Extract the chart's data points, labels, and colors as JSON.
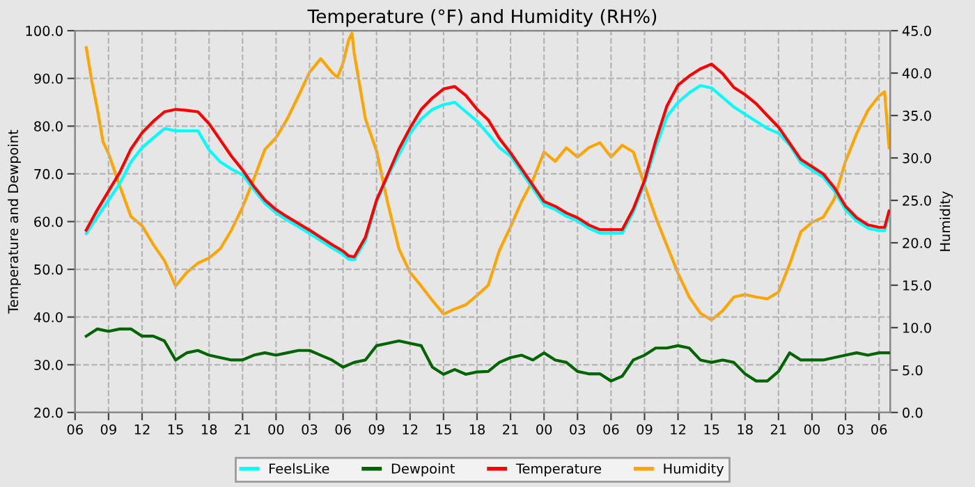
{
  "chart_data": {
    "type": "line",
    "title": "Temperature (°F) and Humidity (RH%)",
    "ylabel": "Temperature and Dewpoint",
    "y2label": "Humidity",
    "xlim": [
      6,
      79
    ],
    "xticks": [
      {
        "value": 6,
        "label": "06"
      },
      {
        "value": 9,
        "label": "09"
      },
      {
        "value": 12,
        "label": "12"
      },
      {
        "value": 15,
        "label": "15"
      },
      {
        "value": 18,
        "label": "18"
      },
      {
        "value": 21,
        "label": "21"
      },
      {
        "value": 24,
        "label": "00"
      },
      {
        "value": 27,
        "label": "03"
      },
      {
        "value": 30,
        "label": "06"
      },
      {
        "value": 33,
        "label": "09"
      },
      {
        "value": 36,
        "label": "12"
      },
      {
        "value": 39,
        "label": "15"
      },
      {
        "value": 42,
        "label": "18"
      },
      {
        "value": 45,
        "label": "21"
      },
      {
        "value": 48,
        "label": "00"
      },
      {
        "value": 51,
        "label": "03"
      },
      {
        "value": 54,
        "label": "06"
      },
      {
        "value": 57,
        "label": "09"
      },
      {
        "value": 60,
        "label": "12"
      },
      {
        "value": 63,
        "label": "15"
      },
      {
        "value": 66,
        "label": "18"
      },
      {
        "value": 69,
        "label": "21"
      },
      {
        "value": 72,
        "label": "00"
      },
      {
        "value": 75,
        "label": "03"
      },
      {
        "value": 78,
        "label": "06"
      }
    ],
    "ylim": [
      20,
      100
    ],
    "yticks": [
      {
        "value": 20,
        "label": "20.0"
      },
      {
        "value": 30,
        "label": "30.0"
      },
      {
        "value": 40,
        "label": "40.0"
      },
      {
        "value": 50,
        "label": "50.0"
      },
      {
        "value": 60,
        "label": "60.0"
      },
      {
        "value": 70,
        "label": "70.0"
      },
      {
        "value": 80,
        "label": "80.0"
      },
      {
        "value": 90,
        "label": "90.0"
      },
      {
        "value": 100,
        "label": "100.0"
      }
    ],
    "y2lim": [
      0,
      45
    ],
    "y2ticks": [
      {
        "value": 0,
        "label": "0.0"
      },
      {
        "value": 5,
        "label": "5.0"
      },
      {
        "value": 10,
        "label": "10.0"
      },
      {
        "value": 15,
        "label": "15.0"
      },
      {
        "value": 20,
        "label": "20.0"
      },
      {
        "value": 25,
        "label": "25.0"
      },
      {
        "value": 30,
        "label": "30.0"
      },
      {
        "value": 35,
        "label": "35.0"
      },
      {
        "value": 40,
        "label": "40.0"
      },
      {
        "value": 45,
        "label": "45.0"
      }
    ],
    "grid": true,
    "legend": "bottom",
    "line_style": "solid",
    "marker": "none",
    "series": [
      {
        "name": "FeelsLike",
        "color": "#00ffff",
        "x": [
          7,
          8,
          9,
          10,
          11,
          12,
          13,
          14,
          15,
          16,
          17,
          18,
          19,
          20,
          21,
          22,
          23,
          24,
          25,
          26,
          27,
          28,
          29,
          30,
          30.5,
          31,
          32,
          33,
          34,
          35,
          36,
          37,
          38,
          39,
          40,
          41,
          42,
          43,
          44,
          45,
          46,
          47,
          48,
          49,
          50,
          51,
          52,
          53,
          54,
          55,
          56,
          57,
          58,
          59,
          60,
          61,
          62,
          63,
          64,
          65,
          66,
          67,
          68,
          69,
          70,
          71,
          72,
          73,
          74,
          75,
          76,
          77,
          78,
          78.5,
          78.9
        ],
        "values": [
          57.5,
          61,
          64.5,
          68,
          72.5,
          75.5,
          77.5,
          79.5,
          79,
          79,
          79,
          75,
          72.5,
          71,
          69.8,
          66.7,
          63.8,
          61.8,
          60.3,
          58.9,
          57.5,
          56,
          54.5,
          53.1,
          52.1,
          52,
          56,
          64,
          69.5,
          74,
          78.5,
          81.5,
          83.5,
          84.5,
          85,
          83,
          81,
          78.3,
          75.5,
          73.7,
          70.3,
          66.9,
          63.5,
          62.5,
          61.1,
          60.1,
          58.6,
          57.6,
          57.6,
          57.6,
          62,
          68,
          75.5,
          82,
          85,
          87,
          88.5,
          88,
          86,
          84,
          82.5,
          81,
          79.5,
          78.5,
          76,
          72.3,
          70.8,
          69.3,
          66.4,
          62.5,
          60.1,
          58.6,
          58.1,
          58.1,
          61.5
        ]
      },
      {
        "name": "Dewpoint",
        "color": "#006400",
        "x": [
          7,
          8,
          9,
          10,
          11,
          12,
          13,
          14,
          15,
          16,
          17,
          18,
          19,
          20,
          21,
          22,
          23,
          24,
          25,
          26,
          27,
          28,
          29,
          30,
          31,
          32,
          33,
          34,
          35,
          36,
          37,
          38,
          39,
          40,
          41,
          42,
          43,
          44,
          45,
          46,
          47,
          48,
          49,
          50,
          51,
          52,
          53,
          54,
          55,
          56,
          57,
          58,
          59,
          60,
          61,
          62,
          63,
          64,
          65,
          66,
          67,
          68,
          69,
          70,
          71,
          72,
          73,
          74,
          75,
          76,
          77,
          78,
          78.9
        ],
        "values": [
          36,
          37.5,
          37,
          37.5,
          37.5,
          36,
          36,
          35,
          31,
          32.5,
          33,
          32,
          31.5,
          31,
          31,
          32,
          32.5,
          32,
          32.5,
          33,
          33,
          32,
          31,
          29.5,
          30.5,
          31,
          34,
          34.5,
          35,
          34.5,
          34,
          29.5,
          28,
          29,
          28,
          28.5,
          28.6,
          30.5,
          31.5,
          32,
          31,
          32.5,
          31,
          30.5,
          28.6,
          28.1,
          28.1,
          26.6,
          27.6,
          31,
          32,
          33.5,
          33.5,
          34,
          33.5,
          31,
          30.5,
          31,
          30.5,
          28.1,
          26.6,
          26.6,
          28.6,
          32.5,
          31,
          31,
          31,
          31.5,
          32,
          32.5,
          32,
          32.5,
          32.5
        ]
      },
      {
        "name": "Temperature",
        "color": "#ff0000",
        "x": [
          7,
          8,
          9,
          10,
          11,
          12,
          13,
          14,
          15,
          16,
          17,
          18,
          19,
          20,
          21,
          22,
          23,
          24,
          25,
          26,
          27,
          28,
          29,
          30,
          30.5,
          31,
          32,
          33,
          34,
          35,
          36,
          37,
          38,
          39,
          40,
          41,
          42,
          43,
          44,
          45,
          46,
          47,
          48,
          49,
          50,
          51,
          52,
          53,
          54,
          55,
          56,
          57,
          58,
          59,
          60,
          61,
          62,
          63,
          64,
          65,
          66,
          67,
          68,
          69,
          70,
          71,
          72,
          73,
          74,
          75,
          76,
          77,
          78,
          78.5,
          78.9
        ],
        "values": [
          58.2,
          62.5,
          66.4,
          70.3,
          75.2,
          78.6,
          81,
          83,
          83.5,
          83.3,
          83,
          80.5,
          77.1,
          73.7,
          70.8,
          67.4,
          64.5,
          62.5,
          61,
          59.6,
          58.2,
          56.7,
          55.2,
          53.8,
          52.8,
          52.6,
          56.7,
          64.5,
          69.8,
          75.2,
          79.6,
          83.5,
          85.9,
          87.8,
          88.3,
          86.4,
          83.5,
          81.3,
          77.4,
          74.4,
          71,
          67.6,
          64.2,
          63.2,
          61.8,
          60.8,
          59.3,
          58.3,
          58.3,
          58.3,
          62.7,
          68.6,
          76.9,
          84.2,
          88.6,
          90.5,
          92,
          93,
          91,
          88.1,
          86.6,
          84.7,
          82.2,
          79.8,
          76.4,
          73,
          71.5,
          70,
          67.1,
          63.2,
          60.8,
          59.3,
          58.8,
          58.8,
          62.2
        ]
      },
      {
        "name": "Humidity",
        "color": "#ffa500",
        "axis": "y2",
        "x": [
          7,
          7.5,
          8,
          8.5,
          9,
          10,
          11,
          12,
          13,
          14,
          15,
          16,
          17,
          18,
          19,
          20,
          21,
          22,
          23,
          24,
          25,
          26,
          27,
          28,
          29,
          29.5,
          30,
          30.5,
          30.8,
          31,
          32,
          33,
          34,
          35,
          36,
          37,
          38,
          39,
          40,
          41,
          42,
          43,
          44,
          45,
          46,
          47,
          48,
          49,
          50,
          51,
          52,
          53,
          54,
          55,
          56,
          57,
          58,
          59,
          60,
          61,
          62,
          63,
          64,
          65,
          66,
          67,
          68,
          69,
          70,
          71,
          72,
          73,
          74,
          75,
          76,
          77,
          78,
          78.5,
          78.9
        ],
        "values": [
          43,
          39,
          35.7,
          31.9,
          30.5,
          26.7,
          23.1,
          22,
          19.8,
          17.9,
          14.9,
          16.5,
          17.6,
          18.2,
          19.3,
          21.5,
          24.2,
          27.5,
          31,
          32.4,
          34.6,
          37.3,
          40.1,
          41.7,
          40.1,
          39.5,
          41.2,
          43.9,
          44.7,
          42.3,
          34.6,
          30.8,
          24.7,
          19.3,
          16.5,
          14.9,
          13.2,
          11.6,
          12.2,
          12.7,
          13.8,
          15,
          19.1,
          21.9,
          24.9,
          27.4,
          30.7,
          29.6,
          31.2,
          30.1,
          31.2,
          31.8,
          30.1,
          31.5,
          30.7,
          26.8,
          23,
          19.7,
          16.4,
          13.6,
          11.7,
          10.9,
          12,
          13.6,
          13.9,
          13.6,
          13.4,
          14.2,
          17.5,
          21.3,
          22.4,
          23,
          25.2,
          29.6,
          32.9,
          35.6,
          37.3,
          37.8,
          31.2
        ]
      }
    ]
  }
}
